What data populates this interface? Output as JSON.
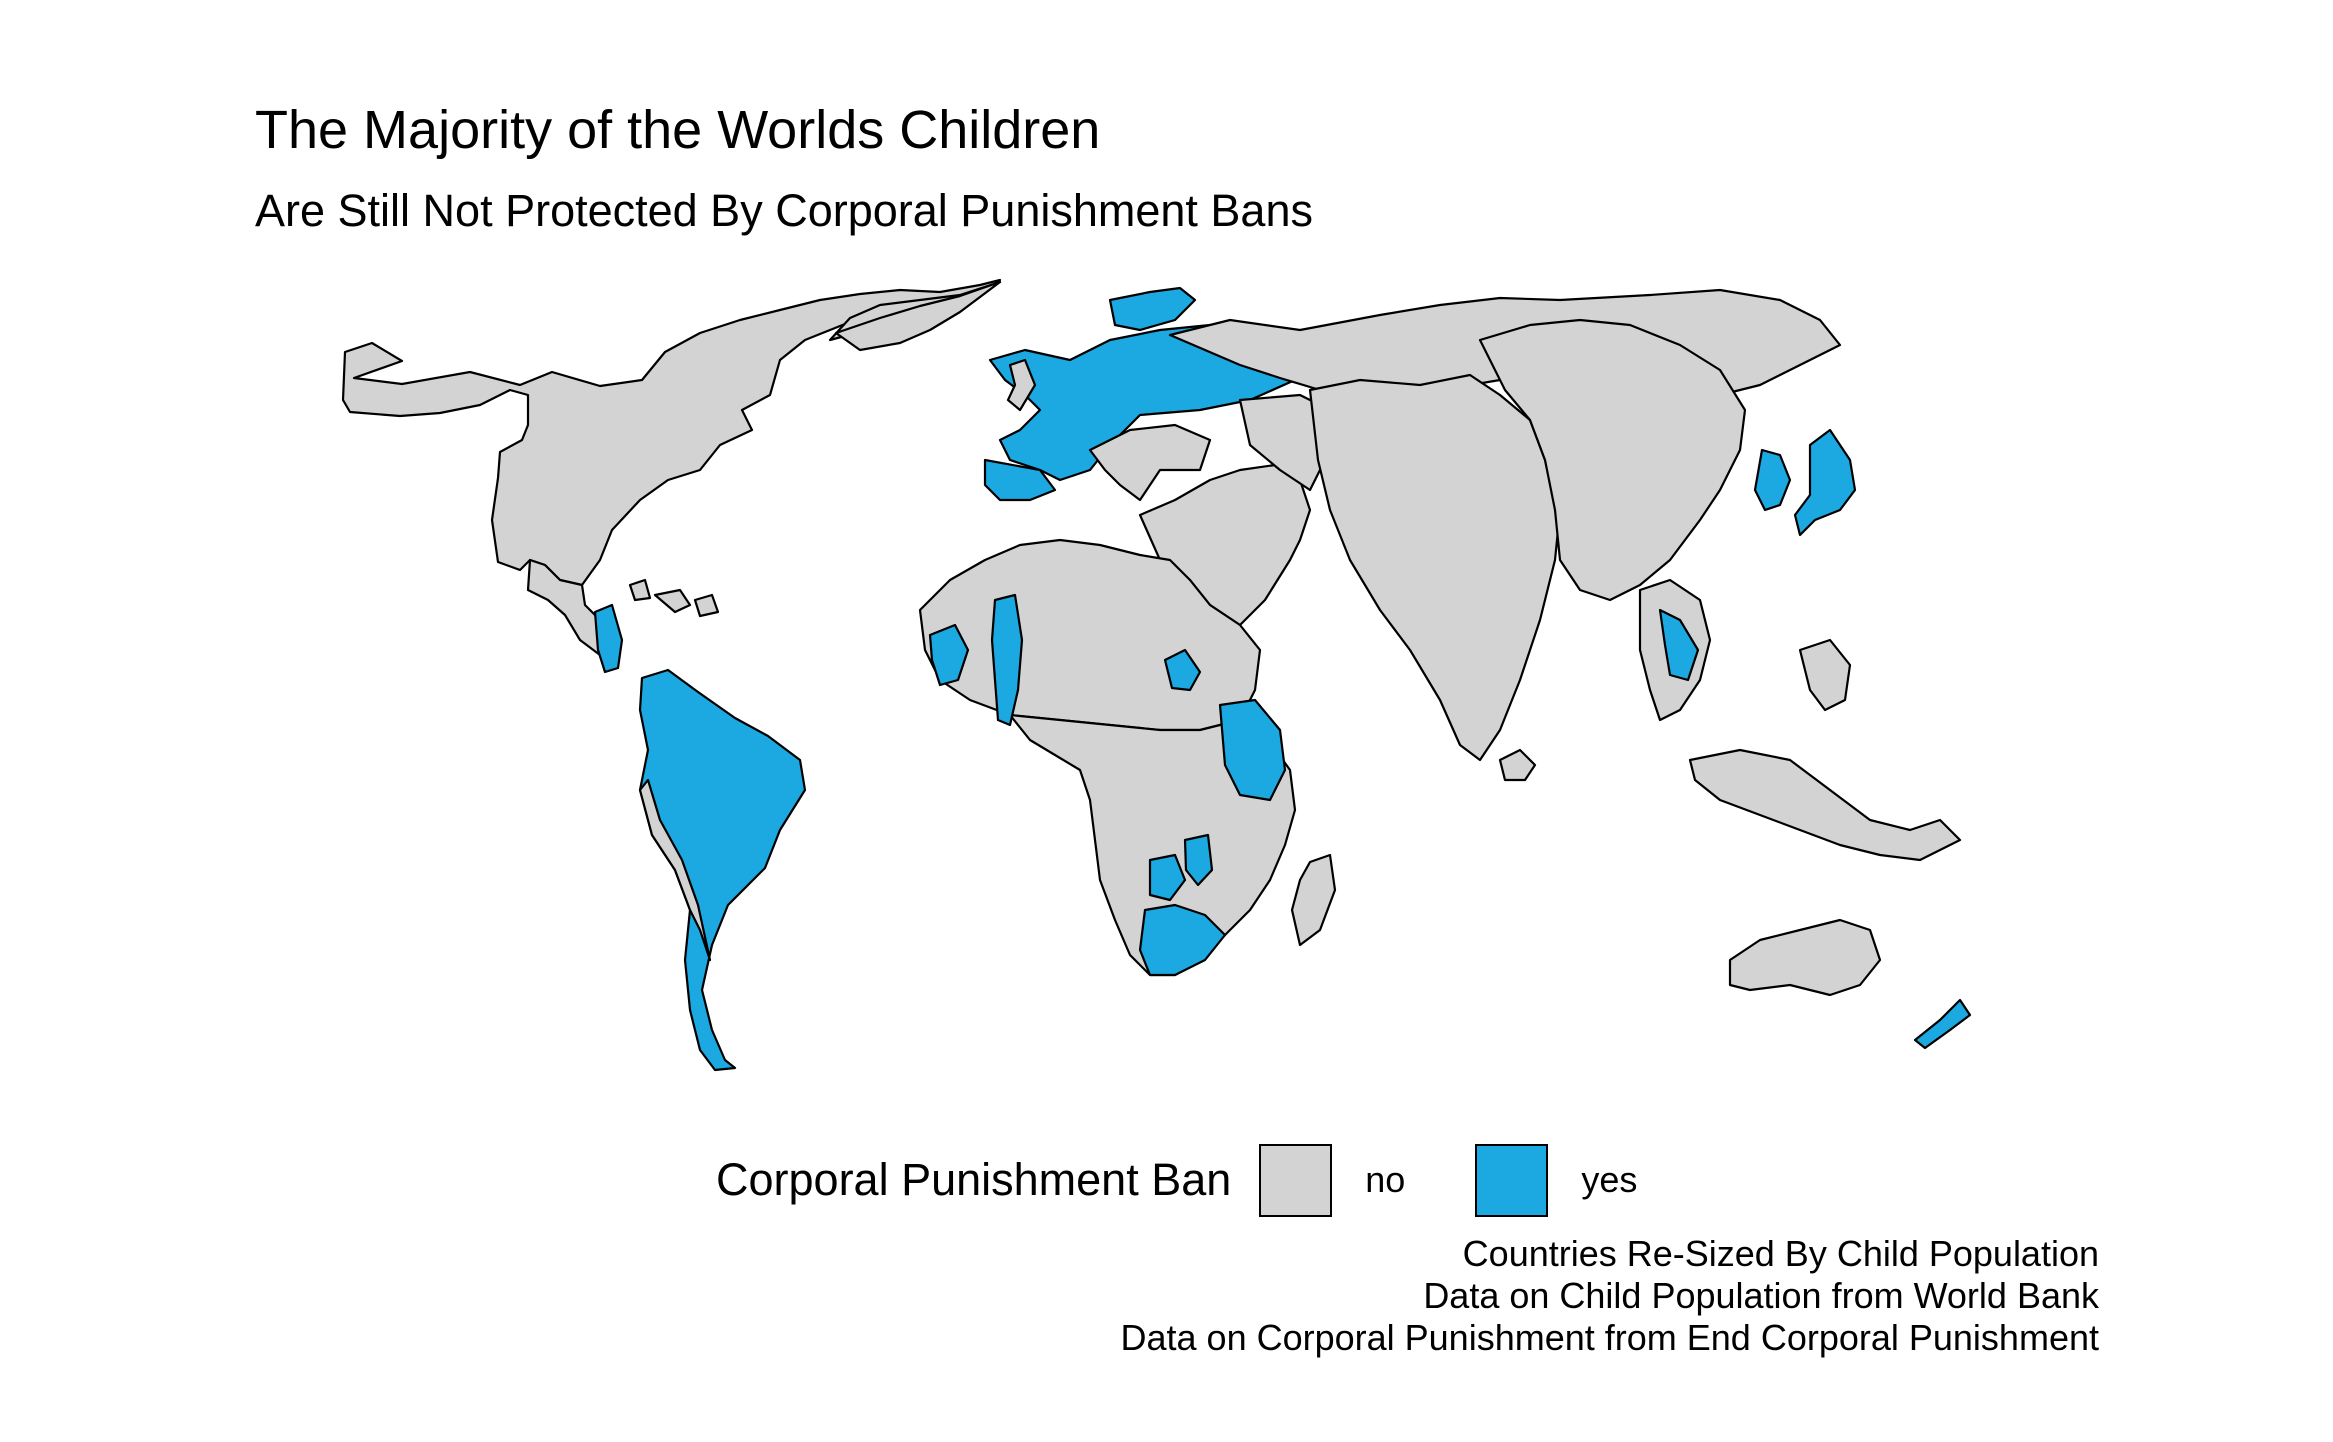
{
  "title": "The Majority of the Worlds Children",
  "subtitle": "Are Still Not Protected By Corporal Punishment Bans",
  "legend": {
    "title": "Corporal Punishment Ban",
    "items": [
      {
        "label": "no",
        "color": "#d3d3d3"
      },
      {
        "label": "yes",
        "color": "#1ca8e0"
      }
    ]
  },
  "caption": [
    "Countries Re-Sized By Child Population",
    "Data on Child Population from World Bank",
    "Data on Corporal Punishment from End Corporal Punishment"
  ],
  "colors": {
    "no": "#d3d3d3",
    "yes": "#1ca8e0",
    "outline": "#000000"
  }
}
